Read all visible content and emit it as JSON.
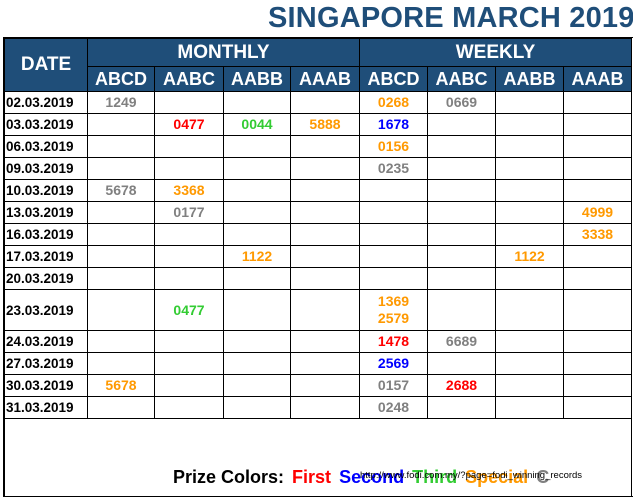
{
  "title": "SINGAPORE MARCH 2019",
  "header": {
    "date": "DATE",
    "monthly": "MONTHLY",
    "weekly": "WEEKLY",
    "cols": [
      "ABCD",
      "AABC",
      "AABB",
      "AAAB",
      "ABCD",
      "AABC",
      "AABB",
      "AAAB"
    ]
  },
  "colors": {
    "first": "#ff0000",
    "second": "#0000ff",
    "third": "#33cc33",
    "special": "#ff9900",
    "consolation": "#808080",
    "header_bg": "#1f4e79"
  },
  "rows": [
    {
      "date": "02.03.2019",
      "cells": [
        {
          "v": "1249",
          "c": "gray"
        },
        null,
        null,
        null,
        {
          "v": "0268",
          "c": "orange"
        },
        {
          "v": "0669",
          "c": "gray"
        },
        null,
        null
      ]
    },
    {
      "date": "03.03.2019",
      "cells": [
        null,
        {
          "v": "0477",
          "c": "red"
        },
        {
          "v": "0044",
          "c": "green"
        },
        {
          "v": "5888",
          "c": "orange"
        },
        {
          "v": "1678",
          "c": "blue"
        },
        null,
        null,
        null
      ]
    },
    {
      "date": "06.03.2019",
      "cells": [
        null,
        null,
        null,
        null,
        {
          "v": "0156",
          "c": "orange"
        },
        null,
        null,
        null
      ]
    },
    {
      "date": "09.03.2019",
      "cells": [
        null,
        null,
        null,
        null,
        {
          "v": "0235",
          "c": "gray"
        },
        null,
        null,
        null
      ]
    },
    {
      "date": "10.03.2019",
      "cells": [
        {
          "v": "5678",
          "c": "gray"
        },
        {
          "v": "3368",
          "c": "orange"
        },
        null,
        null,
        null,
        null,
        null,
        null
      ]
    },
    {
      "date": "13.03.2019",
      "cells": [
        null,
        {
          "v": "0177",
          "c": "gray"
        },
        null,
        null,
        null,
        null,
        null,
        {
          "v": "4999",
          "c": "orange"
        }
      ]
    },
    {
      "date": "16.03.2019",
      "cells": [
        null,
        null,
        null,
        null,
        null,
        null,
        null,
        {
          "v": "3338",
          "c": "orange"
        }
      ]
    },
    {
      "date": "17.03.2019",
      "cells": [
        null,
        null,
        {
          "v": "1122",
          "c": "orange"
        },
        null,
        null,
        null,
        {
          "v": "1122",
          "c": "orange"
        },
        null
      ]
    },
    {
      "date": "20.03.2019",
      "cells": [
        null,
        null,
        null,
        null,
        null,
        null,
        null,
        null
      ]
    },
    {
      "date": "23.03.2019",
      "tall": true,
      "cells": [
        null,
        {
          "v": "0477",
          "c": "green"
        },
        null,
        null,
        {
          "v": "1369",
          "v2": "2579",
          "c": "orange"
        },
        null,
        null,
        null
      ]
    },
    {
      "date": "24.03.2019",
      "cells": [
        null,
        null,
        null,
        null,
        {
          "v": "1478",
          "c": "red"
        },
        {
          "v": "6689",
          "c": "gray"
        },
        null,
        null
      ]
    },
    {
      "date": "27.03.2019",
      "cells": [
        null,
        null,
        null,
        null,
        {
          "v": "2569",
          "c": "blue"
        },
        null,
        null,
        null
      ]
    },
    {
      "date": "30.03.2019",
      "cells": [
        {
          "v": "5678",
          "c": "orange"
        },
        null,
        null,
        null,
        {
          "v": "0157",
          "c": "gray"
        },
        {
          "v": "2688",
          "c": "red"
        },
        null,
        null
      ]
    },
    {
      "date": "31.03.2019",
      "cells": [
        null,
        null,
        null,
        null,
        {
          "v": "0248",
          "c": "gray"
        },
        null,
        null,
        null
      ]
    }
  ],
  "legend": {
    "label": "Prize Colors:",
    "first": "First",
    "second": "Second",
    "third": "Third",
    "special": "Special",
    "consolation": "C"
  },
  "url": "http://www.fodi.com.my/?page=fodi_winning_records"
}
